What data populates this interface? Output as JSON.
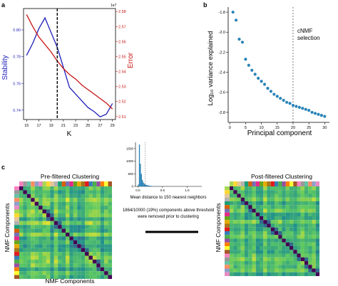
{
  "panels": {
    "a": {
      "letter": "a"
    },
    "b": {
      "letter": "b"
    },
    "c": {
      "letter": "c"
    }
  },
  "chart_data": [
    {
      "id": "a",
      "type": "line",
      "xlabel": "K",
      "ylabel_left": "Stability",
      "ylabel_right": "Error",
      "right_axis_multiplier": "1e7",
      "x": [
        15,
        17,
        19,
        21,
        23,
        25,
        27,
        29
      ],
      "x_ticks": [
        "15",
        "17",
        "19",
        "21",
        "23",
        "25",
        "27",
        "29"
      ],
      "y_left_ticks": [
        "0.74",
        "0.76",
        "0.78",
        "0.80"
      ],
      "y_right_ticks": [
        "2.51",
        "2.52",
        "2.53",
        "2.54",
        "2.55",
        "2.56",
        "2.57",
        "2.58"
      ],
      "ylim_left": [
        0.733,
        0.816
      ],
      "ylim_right": [
        2.508,
        2.582
      ],
      "vline_x": 20,
      "colors": {
        "stability": "#1f1fb8",
        "error": "#c81414"
      },
      "series": [
        {
          "name": "Stability",
          "axis": "left",
          "x": [
            15,
            16,
            17,
            18,
            19,
            20,
            21,
            22,
            23,
            24,
            25,
            26,
            27,
            28,
            29
          ],
          "values": [
            0.781,
            0.79,
            0.801,
            0.809,
            0.798,
            0.787,
            0.772,
            0.757,
            0.752,
            0.747,
            0.742,
            0.739,
            0.735,
            0.737,
            0.745
          ]
        },
        {
          "name": "Error",
          "axis": "right",
          "x": [
            15,
            16,
            17,
            18,
            19,
            20,
            21,
            22,
            23,
            24,
            25,
            26,
            27,
            28,
            29
          ],
          "values": [
            2.578,
            2.57,
            2.563,
            2.558,
            2.553,
            2.547,
            2.542,
            2.538,
            2.535,
            2.531,
            2.528,
            2.525,
            2.522,
            2.519,
            2.515
          ]
        }
      ]
    },
    {
      "id": "b",
      "type": "scatter",
      "xlabel": "Principal component",
      "ylabel": "Log₁₀ variance explained",
      "x_ticks": [
        "0",
        "5",
        "10",
        "15",
        "20",
        "25",
        "30"
      ],
      "y_ticks": [
        "-1.8",
        "-2.0",
        "-2.2",
        "-2.4",
        "-2.6",
        "-2.8"
      ],
      "xlim": [
        -0.5,
        31.5
      ],
      "ylim": [
        -2.9,
        -1.75
      ],
      "vline_x": 20,
      "annotation_lines": [
        "cNMF",
        "selection"
      ],
      "color": "#2a83b8",
      "x": [
        1,
        2,
        3,
        4,
        5,
        6,
        7,
        8,
        9,
        10,
        11,
        12,
        13,
        14,
        15,
        16,
        17,
        18,
        19,
        20,
        21,
        22,
        23,
        24,
        25,
        26,
        27,
        28,
        29,
        30
      ],
      "y": [
        -1.8,
        -1.88,
        -2.07,
        -2.1,
        -2.27,
        -2.33,
        -2.38,
        -2.42,
        -2.46,
        -2.49,
        -2.52,
        -2.56,
        -2.59,
        -2.62,
        -2.64,
        -2.66,
        -2.68,
        -2.7,
        -2.71,
        -2.73,
        -2.74,
        -2.75,
        -2.76,
        -2.77,
        -2.78,
        -2.8,
        -2.81,
        -2.82,
        -2.83,
        -2.84
      ]
    },
    {
      "id": "c-hist",
      "type": "bar",
      "xlabel": "Mean distance to 150 nearest neighbors",
      "x_ticks": [
        "0.0",
        "0.5",
        "1.0"
      ],
      "y_ticks": [
        "0",
        "500",
        "1000",
        "1500"
      ],
      "ylim": [
        0,
        1750
      ],
      "xlim": [
        -0.05,
        1.3
      ],
      "threshold_x": 0.15,
      "color": "#2a83b8",
      "bin_width": 0.02,
      "bin_starts": [
        0.0,
        0.02,
        0.04,
        0.06,
        0.08,
        0.1,
        0.12,
        0.14,
        0.16,
        0.18,
        0.2,
        0.22,
        0.24,
        0.26,
        0.3,
        0.4,
        0.5,
        0.6,
        0.8,
        1.0
      ],
      "values": [
        80,
        1660,
        900,
        500,
        260,
        160,
        110,
        80,
        60,
        50,
        40,
        30,
        25,
        20,
        15,
        10,
        8,
        6,
        4,
        3
      ]
    }
  ],
  "heatmaps": {
    "pre": {
      "title": "Pre-filtered Clustering",
      "xlabel": "NMF Components",
      "ylabel": "NMF Components"
    },
    "post": {
      "title": "Post-filtered Clustering",
      "xlabel": "NMF Components",
      "ylabel": "NMF Components"
    }
  },
  "caption": {
    "line1": "1864/10000 (19%) components above threshold",
    "line2": "were removed prior to clustering"
  }
}
